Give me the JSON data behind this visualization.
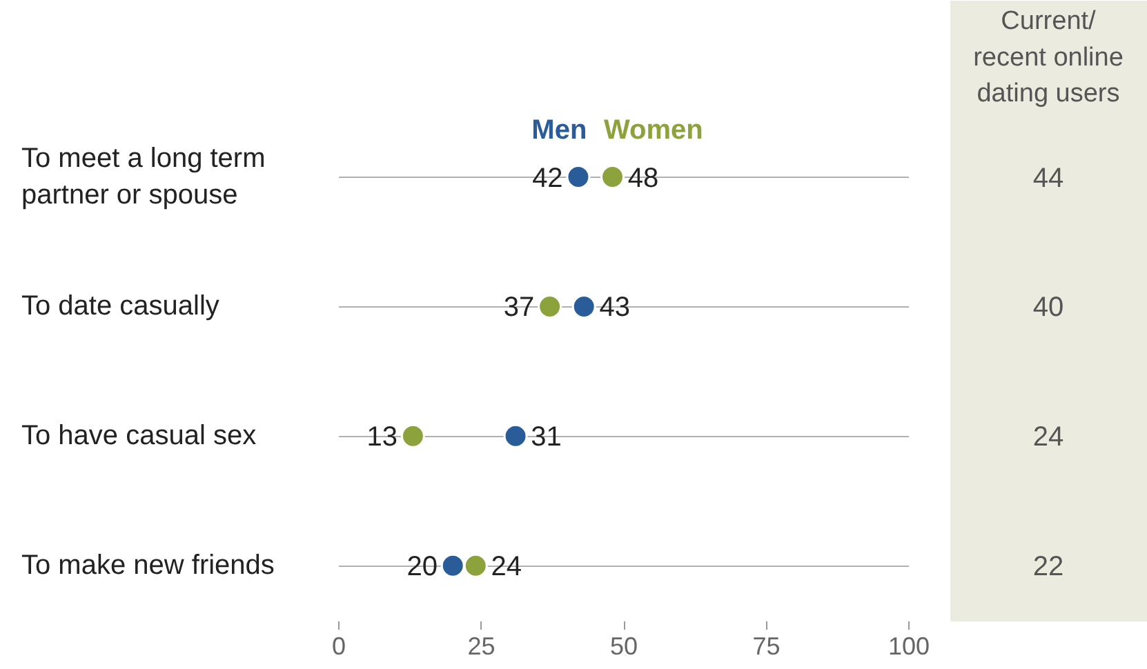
{
  "chart_data": {
    "type": "scatter",
    "orientation": "horizontal",
    "categories": [
      "To meet a long term\npartner or spouse",
      "To date casually",
      "To have casual sex",
      "To make new friends"
    ],
    "series": [
      {
        "name": "Men",
        "color": "#2a5c9a",
        "values": [
          42,
          43,
          31,
          20
        ]
      },
      {
        "name": "Women",
        "color": "#8ca23c",
        "values": [
          48,
          37,
          13,
          24
        ]
      }
    ],
    "xlim": [
      0,
      100
    ],
    "xticks": [
      0,
      25,
      50,
      75,
      100
    ],
    "grid": "y",
    "marker": "circle",
    "data_labels": true,
    "annotations": [
      "Current/\nrecent online\ndating users",
      "44",
      "40",
      "24",
      "22"
    ]
  }
}
